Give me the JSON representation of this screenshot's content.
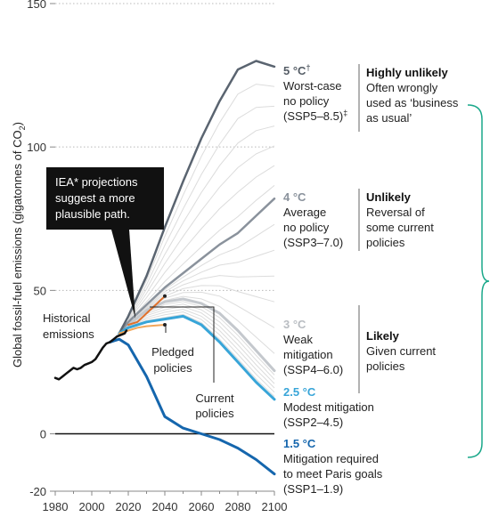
{
  "chart_data": {
    "type": "line",
    "ylabel_pre": "Global fossil-fuel emissions (gigatonnes of CO",
    "ylabel_sub": "2",
    "ylabel_post": ")",
    "xlim": [
      1980,
      2100
    ],
    "ylim": [
      -20,
      150
    ],
    "x_ticks": [
      1980,
      2000,
      2020,
      2040,
      2060,
      2080,
      2100
    ],
    "y_ticks": [
      -20,
      0,
      50,
      100,
      150
    ],
    "y_gridlines": [
      50,
      100,
      150
    ],
    "zero_line": 0,
    "colors": {
      "historical": "#111111",
      "ssp585": "#5a6470",
      "ssp370": "#8a929c",
      "ssp460": "#c4c8cd",
      "ssp245": "#38a5d8",
      "ssp119": "#1566ad",
      "iea": "#e0712c",
      "pledged": "#f2a65a",
      "bracket": "#1aa88a",
      "faint": "#dcdcdc"
    },
    "series": [
      {
        "key": "historical",
        "x": [
          1980,
          1982,
          1984,
          1986,
          1988,
          1990,
          1992,
          1994,
          1996,
          1998,
          2000,
          2002,
          2004,
          2006,
          2008,
          2010,
          2012,
          2014,
          2016,
          2018,
          2019
        ],
        "y": [
          19.5,
          19,
          20,
          21,
          22,
          23,
          22.5,
          23,
          24,
          24.5,
          25,
          26,
          28,
          30,
          31.5,
          32,
          33,
          34,
          34.5,
          35,
          36
        ]
      },
      {
        "key": "ssp585",
        "x": [
          2015,
          2020,
          2030,
          2040,
          2050,
          2060,
          2070,
          2080,
          2090,
          2100
        ],
        "y": [
          35,
          41,
          55,
          72,
          88,
          103,
          116,
          127,
          130,
          128
        ]
      },
      {
        "key": "ssp370",
        "x": [
          2015,
          2020,
          2030,
          2040,
          2050,
          2060,
          2070,
          2080,
          2090,
          2100
        ],
        "y": [
          35,
          39,
          45,
          51,
          56,
          61,
          66,
          70,
          76,
          82
        ]
      },
      {
        "key": "ssp460",
        "x": [
          2015,
          2020,
          2030,
          2040,
          2050,
          2060,
          2070,
          2080,
          2090,
          2100
        ],
        "y": [
          35,
          38,
          43,
          46,
          47,
          45.5,
          42,
          36,
          29,
          22
        ]
      },
      {
        "key": "ssp245",
        "x": [
          2015,
          2020,
          2030,
          2040,
          2050,
          2060,
          2070,
          2080,
          2090,
          2100
        ],
        "y": [
          35,
          37,
          39,
          40,
          41,
          38,
          32,
          25,
          18,
          12
        ]
      },
      {
        "key": "ssp119",
        "x": [
          2010,
          2015,
          2020,
          2030,
          2040,
          2050,
          2060,
          2070,
          2080,
          2090,
          2100
        ],
        "y": [
          32,
          33,
          31,
          20,
          6,
          2,
          0,
          -2,
          -5,
          -9,
          -14
        ]
      },
      {
        "key": "iea",
        "x": [
          2020,
          2025,
          2030,
          2035,
          2040
        ],
        "y": [
          38,
          39,
          42,
          45,
          48
        ]
      },
      {
        "key": "pledged",
        "x": [
          2015,
          2020,
          2025,
          2030,
          2040
        ],
        "y": [
          35,
          36,
          37,
          37.5,
          38
        ]
      }
    ],
    "scenarios": [
      {
        "temp": "5 °C",
        "dagger": "†",
        "line1": "Worst-case",
        "line2": "no policy",
        "line3": "(SSP5–8.5)",
        "mark": "‡"
      },
      {
        "temp": "4 °C",
        "line1": "Average",
        "line2": "no policy",
        "line3": "(SSP3–7.0)"
      },
      {
        "temp": "3 °C",
        "line1": "Weak",
        "line2": "mitigation",
        "line3": "(SSP4–6.0)"
      },
      {
        "temp": "2.5 °C",
        "line1": "Modest mitigation",
        "line2": "(SSP2–4.5)"
      },
      {
        "temp": "1.5 °C",
        "line1": "Mitigation required",
        "line2": "to meet Paris goals",
        "line3": "(SSP1–1.9)"
      }
    ],
    "likelihood": [
      {
        "title": "Highly unlikely",
        "line1": "Often wrongly",
        "line2": "used as ‘business",
        "line3": "as usual’"
      },
      {
        "title": "Unlikely",
        "line1": "Reversal of",
        "line2": "some current",
        "line3": "policies"
      },
      {
        "title": "Likely",
        "line1": "Given current",
        "line2": "policies"
      }
    ],
    "annotations": {
      "iea_line1": "IEA* projections",
      "iea_line2": "suggest a more",
      "iea_line3": "plausible path.",
      "historical_line1": "Historical",
      "historical_line2": "emissions",
      "pledged_line1": "Pledged",
      "pledged_line2": "policies",
      "current_line1": "Current",
      "current_line2": "policies"
    }
  }
}
